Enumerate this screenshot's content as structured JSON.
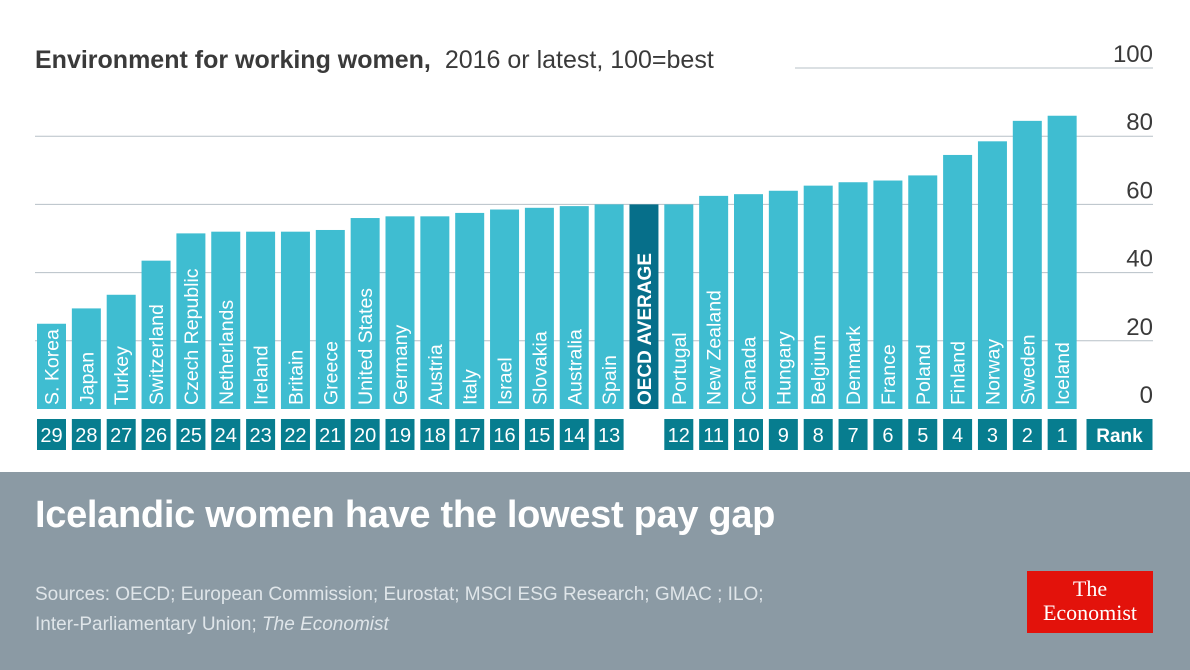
{
  "colors": {
    "bar": "#3fbdd1",
    "oecd_bar": "#066f8a",
    "rank_box": "#077d8f",
    "gridline": "#b7c0c7",
    "footer_bg": "#8b9aa4",
    "logo_red": "#e3120b"
  },
  "chart_data": {
    "type": "bar",
    "title": "Environment for working women,",
    "subtitle": "2016 or latest, 100=best",
    "xlabel": "",
    "ylabel": "",
    "ylim": [
      0,
      100
    ],
    "yticks": [
      0,
      20,
      40,
      60,
      80,
      100
    ],
    "grid": true,
    "orientation": "vertical",
    "rank_label": "Rank",
    "categories": [
      "S. Korea",
      "Japan",
      "Turkey",
      "Switzerland",
      "Czech Republic",
      "Netherlands",
      "Ireland",
      "Britain",
      "Greece",
      "United States",
      "Germany",
      "Austria",
      "Italy",
      "Israel",
      "Slovakia",
      "Australia",
      "Spain",
      "OECD AVERAGE",
      "Portugal",
      "New Zealand",
      "Canada",
      "Hungary",
      "Belgium",
      "Denmark",
      "France",
      "Poland",
      "Finland",
      "Norway",
      "Sweden",
      "Iceland"
    ],
    "values": [
      25,
      29.5,
      33.5,
      43.5,
      51.5,
      52,
      52,
      52,
      52.5,
      56,
      56.5,
      56.5,
      57.5,
      58.5,
      59,
      59.5,
      60,
      60,
      60,
      62.5,
      63,
      64,
      65.5,
      66.5,
      67,
      68.5,
      74.5,
      78.5,
      84.5,
      86
    ],
    "ranks": [
      "29",
      "28",
      "27",
      "26",
      "25",
      "24",
      "23",
      "22",
      "21",
      "20",
      "19",
      "18",
      "17",
      "16",
      "15",
      "14",
      "13",
      "",
      "12",
      "11",
      "10",
      "9",
      "8",
      "7",
      "6",
      "5",
      "4",
      "3",
      "2",
      "1"
    ],
    "highlight": "OECD AVERAGE"
  },
  "footer": {
    "headline": "Icelandic women have the lowest pay gap",
    "sources_line1": "Sources: OECD; European Commission; Eurostat; MSCI ESG Research; GMAC ; ILO;",
    "sources_line2": "Inter-Parliamentary Union; ",
    "sources_italic": "The Economist",
    "logo_line1": "The",
    "logo_line2": "Economist"
  }
}
